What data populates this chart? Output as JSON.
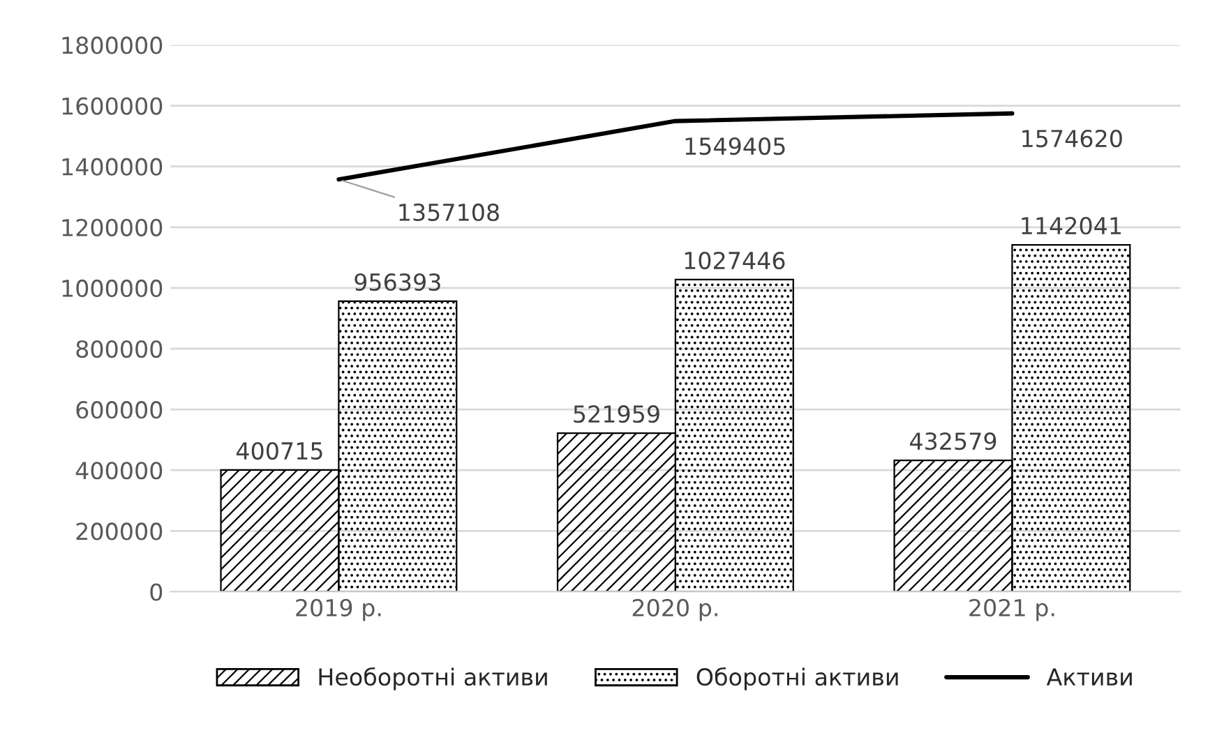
{
  "chart_data": {
    "type": "bar",
    "categories": [
      "2019 р.",
      "2020 р.",
      "2021 р."
    ],
    "series": [
      {
        "name": "Необоротні активи",
        "color": "#000000",
        "values": [
          400715,
          521959,
          432579
        ]
      },
      {
        "name": "Оборотні активи",
        "color": "#000000",
        "values": [
          956393,
          1027446,
          1142041
        ]
      },
      {
        "name": "Активи",
        "color": "#000000",
        "type": "line",
        "values": [
          1357108,
          1549405,
          1574620
        ]
      }
    ],
    "ylim": [
      0,
      1800000
    ],
    "yticks": [
      0,
      200000,
      400000,
      600000,
      800000,
      1000000,
      1200000,
      1400000,
      1600000,
      1800000
    ],
    "grid": "y",
    "legend": "bottom",
    "data_labels": true,
    "marker": "none",
    "line_style": "solid"
  }
}
